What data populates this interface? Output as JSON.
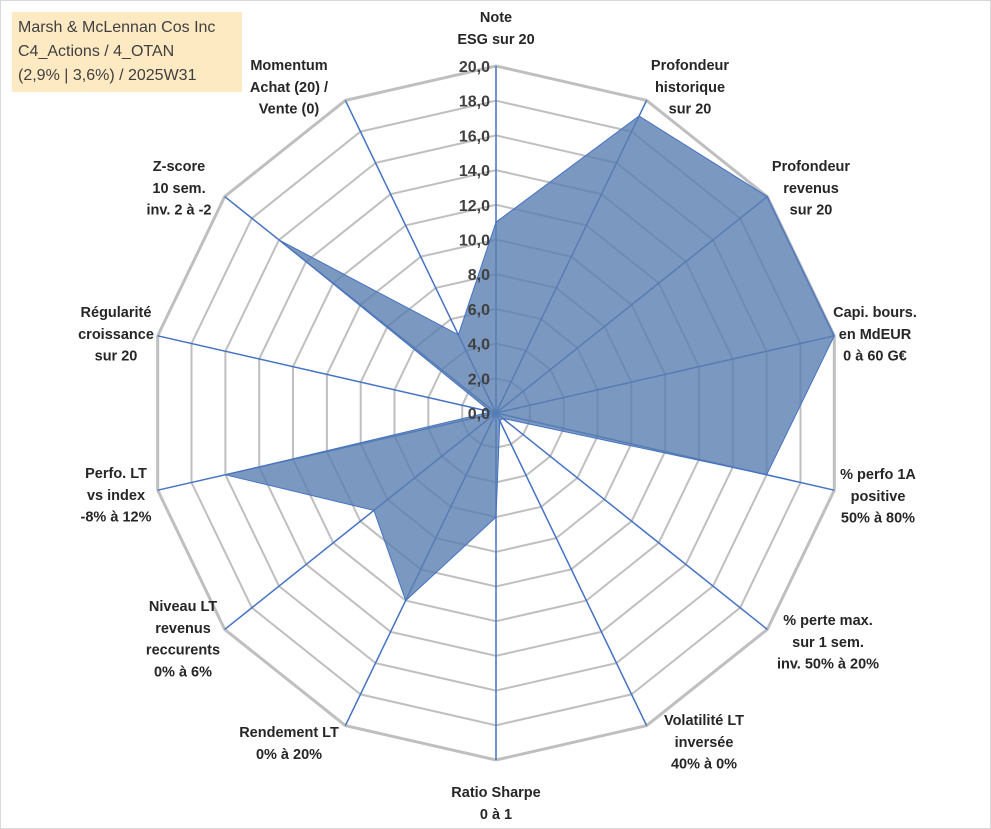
{
  "title": {
    "line1": "Marsh & McLennan Cos Inc",
    "line2": "C4_Actions / 4_OTAN",
    "line3": "(2,9% | 3,6%) / 2025W31"
  },
  "chart_data": {
    "type": "radar",
    "scale": {
      "min": 0,
      "max": 20,
      "step": 2
    },
    "tick_labels": [
      "0,0",
      "2,0",
      "4,0",
      "6,0",
      "8,0",
      "10,0",
      "12,0",
      "14,0",
      "16,0",
      "18,0",
      "20,0"
    ],
    "axes": [
      {
        "label": [
          "Note",
          "ESG sur 20"
        ],
        "value": 11.0
      },
      {
        "label": [
          "Profondeur",
          "historique",
          "sur 20"
        ],
        "value": 19.0
      },
      {
        "label": [
          "Profondeur",
          "revenus",
          "sur 20"
        ],
        "value": 20.0
      },
      {
        "label": [
          "Capi. bours.",
          "en MdEUR",
          "0 à 60 G€"
        ],
        "value": 20.0
      },
      {
        "label": [
          "% perfo 1A",
          "positive",
          "50% à 80%"
        ],
        "value": 16.0
      },
      {
        "label": [
          "% perte max.",
          "sur 1 sem.",
          "inv. 50% à 20%"
        ],
        "value": 0.5
      },
      {
        "label": [
          "Volatilité LT",
          "inversée",
          "40% à 0%"
        ],
        "value": 0.5
      },
      {
        "label": [
          "Ratio Sharpe",
          "0 à 1"
        ],
        "value": 6.0
      },
      {
        "label": [
          "Rendement LT",
          "0% à 20%"
        ],
        "value": 12.0
      },
      {
        "label": [
          "Niveau LT",
          "revenus",
          "reccurents",
          "0% à 6%"
        ],
        "value": 9.0
      },
      {
        "label": [
          "Perfo. LT",
          "vs index",
          "-8% à 12%"
        ],
        "value": 16.0
      },
      {
        "label": [
          "Régularité",
          "croissance",
          "sur 20"
        ],
        "value": 0.3
      },
      {
        "label": [
          "Z-score",
          "10 sem.",
          "inv. 2 à -2"
        ],
        "value": 16.0
      },
      {
        "label": [
          "Momentum",
          "Achat (20) /",
          "Vente (0)"
        ],
        "value": 5.0
      }
    ],
    "colors": {
      "fill": "#5a80b0",
      "fill_opacity": 0.8,
      "axis": "#4472c4",
      "grid": "#bfbfbf"
    }
  }
}
